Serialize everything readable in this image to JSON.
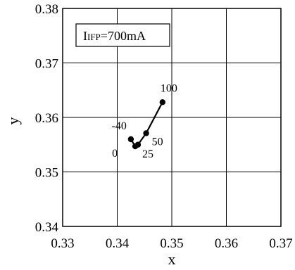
{
  "chart_data": {
    "type": "line",
    "xlabel": "x",
    "ylabel": "y",
    "xlim": [
      0.33,
      0.37
    ],
    "ylim": [
      0.34,
      0.38
    ],
    "xticks": [
      "0.33",
      "0.34",
      "0.35",
      "0.36",
      "0.37"
    ],
    "yticks": [
      "0.34",
      "0.35",
      "0.36",
      "0.37",
      "0.38"
    ],
    "grid": true,
    "condition_box": {
      "prefix_small": "IFP",
      "text": "=700mA"
    },
    "series": [
      {
        "x": [
          0.3425,
          0.3433,
          0.3438,
          0.3453,
          0.3483
        ],
        "y": [
          0.356,
          0.3547,
          0.355,
          0.3571,
          0.3628
        ],
        "labels": [
          "-40",
          "0",
          "25",
          "50",
          "100"
        ]
      }
    ]
  }
}
